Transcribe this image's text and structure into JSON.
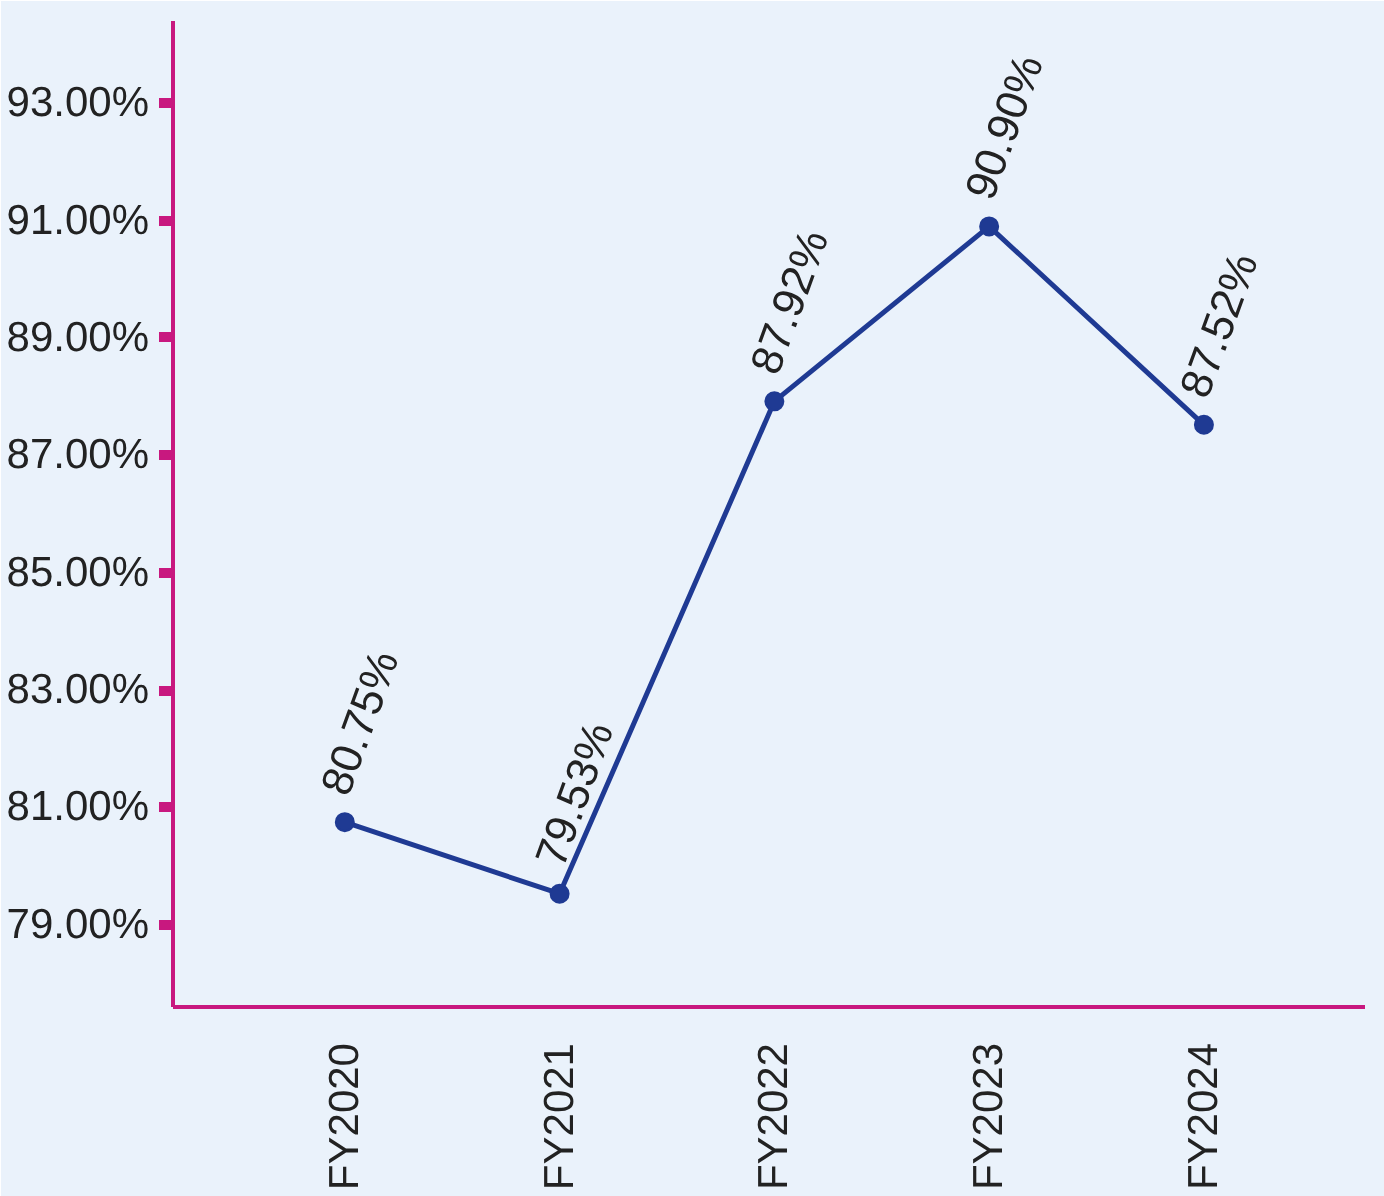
{
  "chart_data": {
    "type": "line",
    "categories": [
      "FY2020",
      "FY2021",
      "FY2022",
      "FY2023",
      "FY2024"
    ],
    "series": [
      {
        "color": "#1f3a93",
        "values": [
          80.75,
          79.53,
          87.92,
          90.9,
          87.52
        ]
      }
    ],
    "ylim": [
      77.6,
      94.4
    ],
    "yticks": [
      {
        "value": 79,
        "label": "79.00%"
      },
      {
        "value": 81,
        "label": "81.00%"
      },
      {
        "value": 83,
        "label": "83.00%"
      },
      {
        "value": 85,
        "label": "85.00%"
      },
      {
        "value": 87,
        "label": "87.00%"
      },
      {
        "value": 89,
        "label": "89.00%"
      },
      {
        "value": 91,
        "label": "91.00%"
      },
      {
        "value": 93,
        "label": "93.00%"
      }
    ],
    "value_labels": [
      "80.75%",
      "79.53%",
      "87.92%",
      "90.90%",
      "87.52%"
    ],
    "grid": false,
    "marker": "circle",
    "line_style": "solid"
  }
}
